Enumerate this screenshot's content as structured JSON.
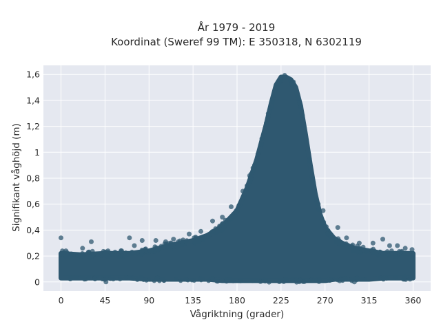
{
  "chart_data": {
    "type": "scatter",
    "title_lines": [
      "År 1979 - 2019",
      "Koordinat (Sweref 99 TM): E 350318, N 6302119"
    ],
    "xlabel": "Vågriktning (grader)",
    "ylabel": "Signifikant våghöjd (m)",
    "xlim": [
      -18,
      378
    ],
    "ylim": [
      -0.07,
      1.67
    ],
    "x_ticks": [
      0,
      45,
      90,
      135,
      180,
      225,
      270,
      315,
      360
    ],
    "x_tick_labels": [
      "0",
      "45",
      "90",
      "135",
      "180",
      "225",
      "270",
      "315",
      "360"
    ],
    "y_ticks": [
      0,
      0.2,
      0.4,
      0.6,
      0.8,
      1,
      1.2,
      1.4,
      1.6
    ],
    "y_tick_labels": [
      "0",
      "0,2",
      "0,4",
      "0,6",
      "0,8",
      "1",
      "1,2",
      "1,4",
      "1,6"
    ],
    "grid": true,
    "colors": {
      "marker": "#2f5870",
      "plot_background": "#e5e8f0",
      "grid": "#ffffff"
    },
    "envelope": {
      "x": [
        0,
        20,
        45,
        70,
        90,
        110,
        135,
        150,
        165,
        180,
        190,
        200,
        210,
        215,
        220,
        225,
        230,
        235,
        240,
        245,
        250,
        255,
        260,
        265,
        270,
        280,
        290,
        300,
        315,
        330,
        345,
        360
      ],
      "y_lower": [
        0.03,
        0.03,
        0.03,
        0.03,
        0.02,
        0.02,
        0.02,
        0.02,
        0.01,
        0.01,
        0.01,
        0.01,
        0.01,
        0.01,
        0.01,
        0.01,
        0.01,
        0.01,
        0.01,
        0.01,
        0.01,
        0.01,
        0.01,
        0.01,
        0.01,
        0.02,
        0.02,
        0.02,
        0.02,
        0.03,
        0.03,
        0.03
      ],
      "y_upper": [
        0.22,
        0.21,
        0.22,
        0.22,
        0.24,
        0.28,
        0.32,
        0.36,
        0.43,
        0.55,
        0.72,
        0.94,
        1.22,
        1.38,
        1.52,
        1.58,
        1.58,
        1.56,
        1.5,
        1.36,
        1.14,
        0.9,
        0.68,
        0.52,
        0.42,
        0.33,
        0.29,
        0.26,
        0.24,
        0.22,
        0.22,
        0.22
      ]
    },
    "outliers": [
      {
        "x": 0,
        "y": 0.34
      },
      {
        "x": 5,
        "y": 0.24
      },
      {
        "x": 22,
        "y": 0.26
      },
      {
        "x": 31,
        "y": 0.31
      },
      {
        "x": 48,
        "y": 0.24
      },
      {
        "x": 62,
        "y": 0.24
      },
      {
        "x": 70,
        "y": 0.34
      },
      {
        "x": 75,
        "y": 0.28
      },
      {
        "x": 83,
        "y": 0.32
      },
      {
        "x": 97,
        "y": 0.32
      },
      {
        "x": 107,
        "y": 0.31
      },
      {
        "x": 115,
        "y": 0.33
      },
      {
        "x": 120,
        "y": 0.31
      },
      {
        "x": 131,
        "y": 0.37
      },
      {
        "x": 143,
        "y": 0.39
      },
      {
        "x": 155,
        "y": 0.47
      },
      {
        "x": 165,
        "y": 0.5
      },
      {
        "x": 174,
        "y": 0.58
      },
      {
        "x": 186,
        "y": 0.7
      },
      {
        "x": 193,
        "y": 0.82
      },
      {
        "x": 198,
        "y": 0.9
      },
      {
        "x": 263,
        "y": 0.6
      },
      {
        "x": 268,
        "y": 0.55
      },
      {
        "x": 283,
        "y": 0.42
      },
      {
        "x": 292,
        "y": 0.34
      },
      {
        "x": 305,
        "y": 0.3
      },
      {
        "x": 319,
        "y": 0.3
      },
      {
        "x": 329,
        "y": 0.33
      },
      {
        "x": 336,
        "y": 0.28
      },
      {
        "x": 344,
        "y": 0.28
      },
      {
        "x": 352,
        "y": 0.26
      },
      {
        "x": 359,
        "y": 0.25
      },
      {
        "x": 46,
        "y": 0.0
      },
      {
        "x": 300,
        "y": 0.0
      }
    ]
  }
}
